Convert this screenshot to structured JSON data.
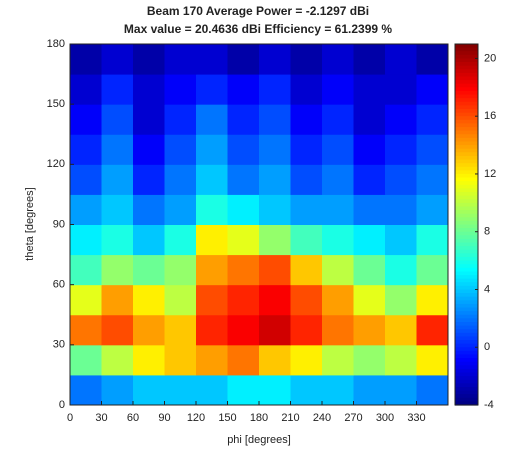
{
  "chart_data": {
    "type": "heatmap",
    "title": "Beam 170 Average Power = -2.1297 dBi",
    "subtitle": "Max value = 20.4636 dBi Efficiency = 61.2399 %",
    "x_label": "phi [degrees]",
    "y_label": "theta [degrees]",
    "x": [
      15,
      45,
      75,
      105,
      135,
      165,
      195,
      225,
      255,
      285,
      315,
      345
    ],
    "y": [
      7.5,
      22.5,
      37.5,
      52.5,
      67.5,
      82.5,
      97.5,
      112.5,
      127.5,
      142.5,
      157.5,
      172.5
    ],
    "z": [
      [
        2,
        3,
        4,
        4,
        4,
        5,
        5,
        4,
        4,
        3,
        3,
        2
      ],
      [
        8,
        10,
        12,
        13,
        14,
        15,
        13,
        12,
        10,
        9,
        10,
        12
      ],
      [
        15,
        16,
        14,
        13,
        17,
        18,
        19,
        17,
        15,
        14,
        13,
        17
      ],
      [
        11,
        14,
        12,
        10,
        16,
        17,
        18,
        16,
        14,
        11,
        9,
        12
      ],
      [
        7,
        9,
        8,
        9,
        14,
        15,
        16,
        13,
        10,
        8,
        6,
        8
      ],
      [
        5,
        6,
        4,
        6,
        12,
        11,
        9,
        7,
        6,
        5,
        4,
        6
      ],
      [
        3,
        4,
        2,
        3,
        6,
        5,
        4,
        3,
        3,
        2,
        2,
        3
      ],
      [
        1,
        3,
        0,
        2,
        4,
        2,
        3,
        1,
        2,
        0,
        1,
        2
      ],
      [
        0,
        2,
        -1,
        1,
        3,
        1,
        2,
        0,
        1,
        -1,
        0,
        1
      ],
      [
        -1,
        1,
        -2,
        0,
        2,
        0,
        1,
        -1,
        0,
        -2,
        -1,
        0
      ],
      [
        -2,
        0,
        -2,
        -1,
        0,
        -1,
        0,
        -2,
        -1,
        -2,
        -2,
        -1
      ],
      [
        -3,
        -2,
        -3,
        -2,
        -2,
        -3,
        -2,
        -3,
        -2,
        -3,
        -2,
        -3
      ]
    ],
    "xlim": [
      0,
      360
    ],
    "xticks": [
      0,
      30,
      60,
      90,
      120,
      150,
      180,
      210,
      240,
      270,
      300,
      330
    ],
    "ylim": [
      0,
      180
    ],
    "yticks": [
      0,
      30,
      60,
      90,
      120,
      150,
      180
    ],
    "clim": [
      -4,
      21
    ],
    "cticks": [
      -4,
      0,
      4,
      8,
      12,
      16,
      20
    ],
    "colormap": "jet"
  }
}
